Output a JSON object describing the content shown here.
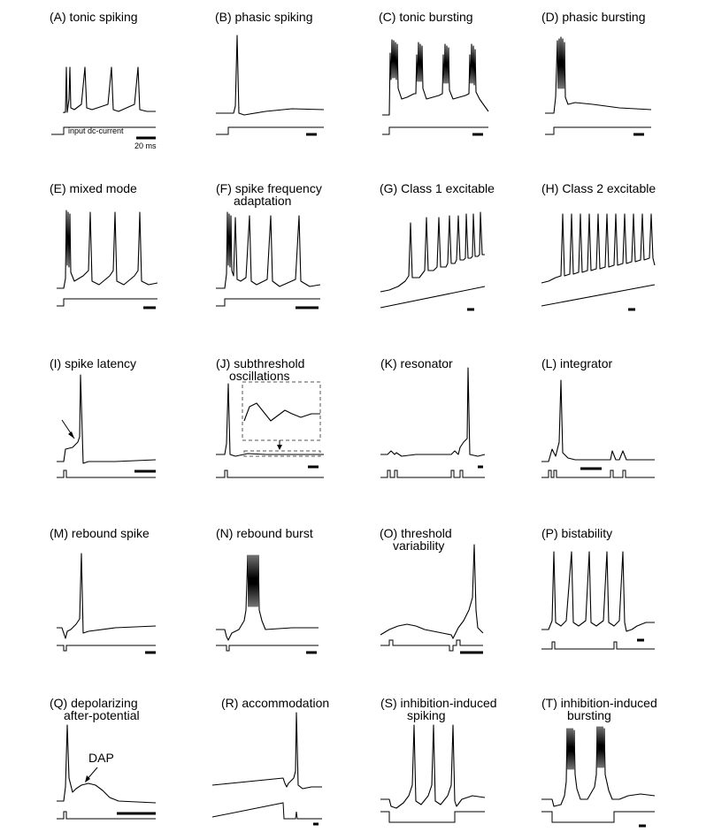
{
  "panels": [
    {
      "id": "A",
      "title": [
        "(A) tonic spiking"
      ],
      "input_label": "input dc-current",
      "scale_label": "20 ms"
    },
    {
      "id": "B",
      "title": [
        "(B) phasic spiking"
      ]
    },
    {
      "id": "C",
      "title": [
        "(C) tonic bursting"
      ]
    },
    {
      "id": "D",
      "title": [
        "(D) phasic bursting"
      ]
    },
    {
      "id": "E",
      "title": [
        "(E) mixed mode"
      ]
    },
    {
      "id": "F",
      "title": [
        "(F) spike frequency",
        "adaptation"
      ]
    },
    {
      "id": "G",
      "title": [
        "(G) Class 1 excitable"
      ]
    },
    {
      "id": "H",
      "title": [
        "(H) Class 2 excitable"
      ]
    },
    {
      "id": "I",
      "title": [
        "(I) spike latency"
      ]
    },
    {
      "id": "J",
      "title": [
        "(J) subthreshold",
        "oscillations"
      ]
    },
    {
      "id": "K",
      "title": [
        "(K) resonator"
      ]
    },
    {
      "id": "L",
      "title": [
        "(L) integrator"
      ]
    },
    {
      "id": "M",
      "title": [
        "(M) rebound spike"
      ]
    },
    {
      "id": "N",
      "title": [
        "(N) rebound burst"
      ]
    },
    {
      "id": "O",
      "title": [
        "(O) threshold",
        "variability"
      ]
    },
    {
      "id": "P",
      "title": [
        "(P) bistability"
      ]
    },
    {
      "id": "Q",
      "title": [
        "(Q) depolarizing",
        "after-potential"
      ],
      "annotation": "DAP"
    },
    {
      "id": "R",
      "title": [
        "(R) accommodation"
      ]
    },
    {
      "id": "S",
      "title": [
        "(S) inhibition-induced",
        "spiking"
      ]
    },
    {
      "id": "T",
      "title": [
        "(T) inhibition-induced",
        "bursting"
      ]
    }
  ]
}
